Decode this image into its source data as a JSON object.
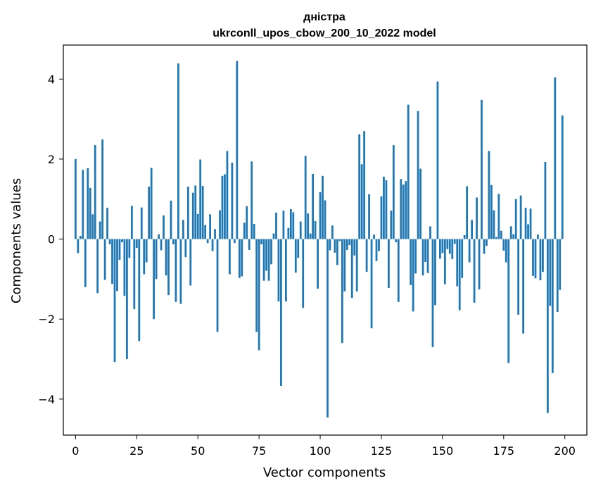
{
  "chart_data": {
    "type": "bar",
    "title": "дністра",
    "subtitle": "ukrconll_upos_cbow_200_10_2022 model",
    "xlabel": "Vector components",
    "ylabel": "Components values",
    "xlim": [
      -5,
      209
    ],
    "ylim": [
      -4.9,
      4.85
    ],
    "xticks": [
      0,
      25,
      50,
      75,
      100,
      125,
      150,
      175,
      200
    ],
    "xtick_labels": [
      "0",
      "25",
      "50",
      "75",
      "100",
      "125",
      "150",
      "175",
      "200"
    ],
    "yticks": [
      -4,
      -2,
      0,
      2,
      4
    ],
    "ytick_labels": [
      "−4",
      "−2",
      "0",
      "2",
      "4"
    ],
    "grid": false,
    "bar_color": "#1f77b4",
    "x": [
      0,
      1,
      2,
      3,
      4,
      5,
      6,
      7,
      8,
      9,
      10,
      11,
      12,
      13,
      14,
      15,
      16,
      17,
      18,
      19,
      20,
      21,
      22,
      23,
      24,
      25,
      26,
      27,
      28,
      29,
      30,
      31,
      32,
      33,
      34,
      35,
      36,
      37,
      38,
      39,
      40,
      41,
      42,
      43,
      44,
      45,
      46,
      47,
      48,
      49,
      50,
      51,
      52,
      53,
      54,
      55,
      56,
      57,
      58,
      59,
      60,
      61,
      62,
      63,
      64,
      65,
      66,
      67,
      68,
      69,
      70,
      71,
      72,
      73,
      74,
      75,
      76,
      77,
      78,
      79,
      80,
      81,
      82,
      83,
      84,
      85,
      86,
      87,
      88,
      89,
      90,
      91,
      92,
      93,
      94,
      95,
      96,
      97,
      98,
      99,
      100,
      101,
      102,
      103,
      104,
      105,
      106,
      107,
      108,
      109,
      110,
      111,
      112,
      113,
      114,
      115,
      116,
      117,
      118,
      119,
      120,
      121,
      122,
      123,
      124,
      125,
      126,
      127,
      128,
      129,
      130,
      131,
      132,
      133,
      134,
      135,
      136,
      137,
      138,
      139,
      140,
      141,
      142,
      143,
      144,
      145,
      146,
      147,
      148,
      149,
      150,
      151,
      152,
      153,
      154,
      155,
      156,
      157,
      158,
      159,
      160,
      161,
      162,
      163,
      164,
      165,
      166,
      167,
      168,
      169,
      170,
      171,
      172,
      173,
      174,
      175,
      176,
      177,
      178,
      179,
      180,
      181,
      182,
      183,
      184,
      185,
      186,
      187,
      188,
      189,
      190,
      191,
      192,
      193,
      194,
      195,
      196,
      197,
      198,
      199
    ],
    "values": [
      2.0,
      -0.35,
      0.08,
      1.73,
      -1.2,
      1.77,
      1.28,
      0.62,
      2.35,
      -1.35,
      0.44,
      2.49,
      -1.02,
      0.78,
      -0.13,
      -1.12,
      -3.07,
      -1.3,
      -0.52,
      -0.08,
      -1.42,
      -3.0,
      -0.47,
      0.83,
      -1.75,
      -0.22,
      -2.55,
      0.79,
      -0.88,
      -0.58,
      1.31,
      1.78,
      -2.0,
      -1.0,
      0.12,
      -0.28,
      0.59,
      -0.91,
      -1.4,
      0.96,
      -0.13,
      -1.57,
      4.39,
      -1.62,
      0.48,
      -0.45,
      1.31,
      -1.16,
      1.16,
      1.34,
      0.63,
      1.99,
      1.33,
      0.35,
      -0.1,
      0.62,
      -0.3,
      0.25,
      -2.32,
      0.72,
      1.58,
      1.62,
      2.2,
      -0.88,
      1.91,
      -0.1,
      4.45,
      -0.97,
      -0.93,
      0.41,
      0.82,
      -0.27,
      1.94,
      0.38,
      -2.32,
      -2.78,
      -0.13,
      -1.04,
      -0.79,
      -1.04,
      -0.63,
      0.14,
      0.66,
      -1.56,
      -3.67,
      0.71,
      -1.56,
      0.28,
      0.75,
      0.67,
      -0.84,
      -0.47,
      0.44,
      -1.72,
      2.08,
      0.64,
      0.14,
      1.63,
      0.45,
      -1.24,
      1.17,
      1.58,
      0.97,
      -4.46,
      -0.28,
      0.34,
      -0.34,
      -0.65,
      -0.05,
      -2.6,
      -1.31,
      -0.27,
      -0.15,
      -1.47,
      -0.41,
      -1.31,
      2.62,
      1.87,
      2.7,
      -0.82,
      1.12,
      -2.23,
      0.11,
      -0.55,
      -0.3,
      1.07,
      1.56,
      1.47,
      -1.22,
      0.71,
      2.35,
      -0.08,
      -1.57,
      1.5,
      1.36,
      1.45,
      3.36,
      -1.15,
      -1.81,
      -0.86,
      3.2,
      1.76,
      -0.91,
      -0.57,
      -0.85,
      0.32,
      -2.7,
      -1.65,
      3.94,
      -0.49,
      -0.35,
      -1.13,
      -0.25,
      -0.37,
      -0.5,
      -0.12,
      -1.18,
      -1.78,
      -0.97,
      0.1,
      1.32,
      -0.58,
      0.48,
      -1.59,
      1.04,
      -1.26,
      3.48,
      -0.37,
      -0.17,
      2.2,
      1.35,
      0.72,
      0.05,
      1.13,
      0.21,
      -0.29,
      -0.58,
      -3.1,
      0.32,
      0.12,
      1.0,
      -1.89,
      1.09,
      -2.36,
      0.78,
      0.37,
      0.76,
      -0.92,
      -0.98,
      0.11,
      -1.03,
      -0.82,
      1.93,
      -4.35,
      -1.67,
      -3.35,
      4.04,
      -1.82,
      -1.27,
      3.09
    ]
  }
}
